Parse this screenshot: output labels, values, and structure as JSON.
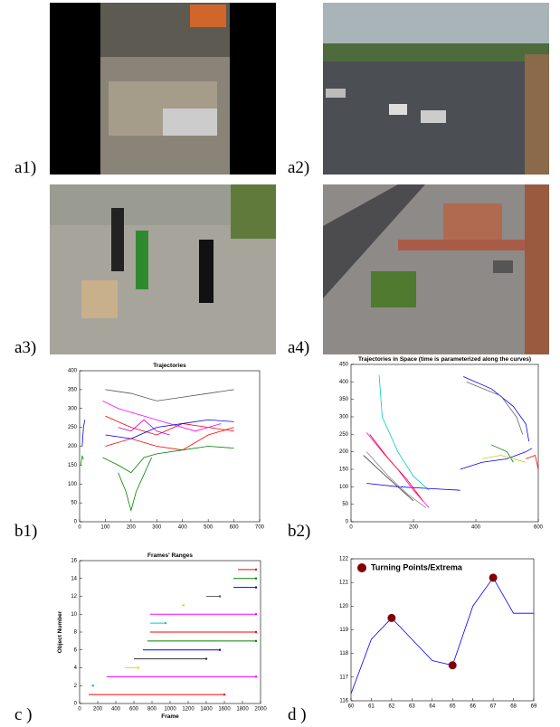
{
  "panel_labels": [
    "a1)",
    "a2)",
    "a3)",
    "a4)",
    "b1)",
    "b2)",
    "c )",
    "d )"
  ],
  "chart_data": [
    {
      "type": "line",
      "title": "Trajectories",
      "xlim": [
        0,
        700
      ],
      "xticks": [
        0,
        100,
        200,
        300,
        400,
        500,
        600,
        700
      ],
      "ylim": [
        0,
        400
      ],
      "yticks": [
        0,
        50,
        100,
        150,
        200,
        250,
        300,
        350,
        400
      ],
      "series": [
        {
          "color": "#555555",
          "x": [
            100,
            200,
            300,
            400,
            500,
            600
          ],
          "values": [
            350,
            340,
            320,
            330,
            340,
            350
          ]
        },
        {
          "color": "#ff0000",
          "x": [
            100,
            200,
            300,
            400,
            500,
            600
          ],
          "values": [
            280,
            250,
            230,
            260,
            250,
            240
          ]
        },
        {
          "color": "#ff00ff",
          "x": [
            90,
            150,
            250,
            350,
            450,
            550
          ],
          "values": [
            320,
            300,
            280,
            260,
            240,
            260
          ]
        },
        {
          "color": "#0000ff",
          "x": [
            100,
            200,
            300,
            400,
            500,
            600
          ],
          "values": [
            230,
            220,
            250,
            260,
            270,
            265
          ]
        },
        {
          "color": "#008000",
          "x": [
            90,
            150,
            200,
            250,
            300,
            400,
            500,
            600
          ],
          "values": [
            170,
            150,
            130,
            170,
            180,
            190,
            200,
            195
          ]
        },
        {
          "color": "#008000",
          "x": [
            150,
            180,
            200,
            220,
            280
          ],
          "values": [
            130,
            80,
            30,
            80,
            170
          ]
        },
        {
          "color": "#ff0000",
          "x": [
            100,
            200,
            300,
            400,
            500,
            600
          ],
          "values": [
            200,
            220,
            200,
            190,
            230,
            250
          ]
        },
        {
          "color": "#0000ff",
          "x": [
            10,
            15,
            20
          ],
          "values": [
            200,
            250,
            270
          ]
        },
        {
          "color": "#00a000",
          "x": [
            5,
            10,
            15
          ],
          "values": [
            150,
            175,
            165
          ]
        },
        {
          "color": "#cc00cc",
          "x": [
            150,
            200,
            250,
            300,
            350
          ],
          "values": [
            250,
            240,
            270,
            240,
            230
          ]
        }
      ]
    },
    {
      "type": "line",
      "title": "Trajectories in Space (time is parameterized along the curves)",
      "xlim": [
        0,
        600
      ],
      "xticks": [
        0,
        200,
        400,
        600
      ],
      "ylim": [
        0,
        450
      ],
      "yticks": [
        0,
        50,
        100,
        150,
        200,
        250,
        300,
        350,
        400,
        450
      ],
      "series": [
        {
          "color": "#00cccc",
          "x": [
            90,
            100,
            150,
            200,
            250
          ],
          "values": [
            420,
            300,
            200,
            130,
            90
          ]
        },
        {
          "color": "#0000ff",
          "x": [
            50,
            150,
            250,
            350
          ],
          "values": [
            110,
            100,
            95,
            90
          ]
        },
        {
          "color": "#333333",
          "x": [
            40,
            100,
            150,
            200
          ],
          "values": [
            190,
            140,
            100,
            60
          ]
        },
        {
          "color": "#888888",
          "x": [
            50,
            120,
            180,
            240
          ],
          "values": [
            200,
            130,
            80,
            40
          ]
        },
        {
          "color": "#ff00ff",
          "x": [
            50,
            100,
            150,
            200,
            250
          ],
          "values": [
            255,
            200,
            150,
            90,
            40
          ]
        },
        {
          "color": "#ff0000",
          "x": [
            60,
            120,
            180,
            230
          ],
          "values": [
            250,
            180,
            120,
            60
          ]
        },
        {
          "color": "#0000ff",
          "x": [
            360,
            450,
            520,
            560,
            570
          ],
          "values": [
            415,
            380,
            330,
            280,
            230
          ]
        },
        {
          "color": "#666666",
          "x": [
            370,
            480,
            530,
            550
          ],
          "values": [
            400,
            360,
            300,
            250
          ]
        },
        {
          "color": "#0000ff",
          "x": [
            350,
            420,
            500,
            560,
            580
          ],
          "values": [
            150,
            170,
            180,
            200,
            210
          ]
        },
        {
          "color": "#008000",
          "x": [
            450,
            500,
            520
          ],
          "values": [
            220,
            200,
            170
          ]
        },
        {
          "color": "#ff0000",
          "x": [
            560,
            590,
            600
          ],
          "values": [
            180,
            190,
            150
          ]
        },
        {
          "color": "#cccc00",
          "x": [
            420,
            480,
            560
          ],
          "values": [
            180,
            190,
            170
          ]
        }
      ]
    },
    {
      "type": "range",
      "title": "Frames' Ranges",
      "xlabel": "Frame",
      "ylabel": "Object Number",
      "xlim": [
        0,
        2000
      ],
      "xticks": [
        0,
        200,
        400,
        600,
        800,
        1000,
        1200,
        1400,
        1600,
        1800,
        2000
      ],
      "ylim": [
        0,
        16
      ],
      "yticks": [
        0,
        2,
        4,
        6,
        8,
        10,
        12,
        14,
        16
      ],
      "y": [
        1,
        2,
        3,
        4,
        5,
        6,
        7,
        8,
        9,
        10,
        11,
        12,
        13,
        14,
        15
      ],
      "start": [
        100,
        130,
        300,
        500,
        600,
        700,
        750,
        780,
        780,
        780,
        1130,
        1400,
        1700,
        1700,
        1750
      ],
      "end": [
        1600,
        150,
        1950,
        650,
        1400,
        1550,
        1950,
        1950,
        950,
        1950,
        1150,
        1550,
        1950,
        1950,
        1950
      ],
      "colors": [
        "#ff0000",
        "#00cccc",
        "#ff00ff",
        "#dddd00",
        "#333333",
        "#0000ff",
        "#008000",
        "#ff0000",
        "#00cccc",
        "#ff00ff",
        "#dddd00",
        "#555555",
        "#0000ff",
        "#008000",
        "#ff0000"
      ]
    },
    {
      "type": "line",
      "xlim": [
        60,
        69
      ],
      "xticks": [
        60,
        61,
        62,
        63,
        64,
        65,
        66,
        67,
        68,
        69
      ],
      "ylim": [
        116,
        122
      ],
      "yticks": [
        116,
        117,
        118,
        119,
        120,
        121,
        122
      ],
      "series": [
        {
          "color": "#0000ff",
          "x": [
            60,
            61,
            62,
            63,
            64,
            65,
            66,
            67,
            68,
            69
          ],
          "values": [
            116.3,
            118.6,
            119.5,
            118.6,
            117.7,
            117.5,
            120,
            121.2,
            119.7,
            119.7
          ]
        },
        {
          "name": "Turning Points/Extrema",
          "mode": "markers",
          "color": "#800000",
          "x": [
            62,
            65,
            67
          ],
          "values": [
            119.5,
            117.5,
            121.2
          ]
        }
      ]
    }
  ]
}
